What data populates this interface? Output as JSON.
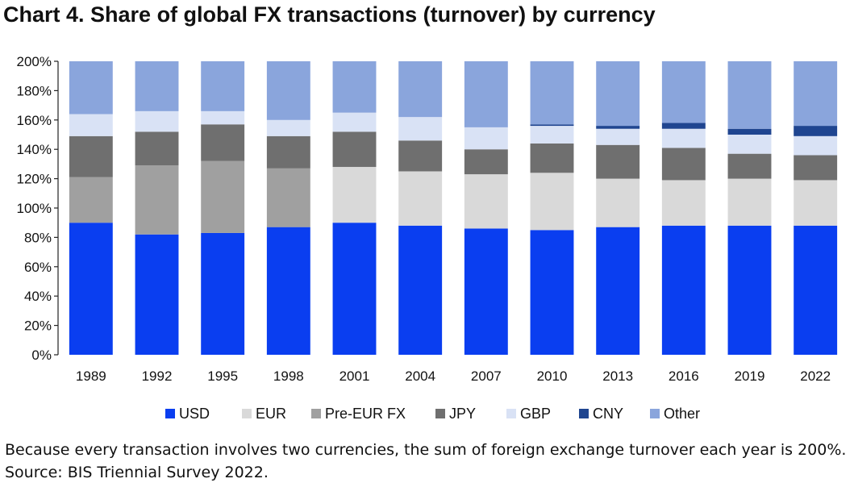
{
  "chart_data": {
    "type": "bar",
    "stacked": true,
    "title": "Chart 4. Share of global FX transactions (turnover) by currency",
    "xlabel": "",
    "ylabel": "",
    "ylim": [
      0,
      200
    ],
    "yticks": [
      "0%",
      "20%",
      "40%",
      "60%",
      "80%",
      "100%",
      "120%",
      "140%",
      "160%",
      "180%",
      "200%"
    ],
    "legend_position": "bottom",
    "categories": [
      "1989",
      "1992",
      "1995",
      "1998",
      "2001",
      "2004",
      "2007",
      "2010",
      "2013",
      "2016",
      "2019",
      "2022"
    ],
    "series": [
      {
        "name": "USD",
        "color": "#0a3ef0",
        "values": [
          90,
          82,
          83,
          87,
          90,
          88,
          86,
          85,
          87,
          88,
          88,
          88
        ]
      },
      {
        "name": "EUR",
        "color": "#d9d9d9",
        "values": [
          0,
          0,
          0,
          0,
          38,
          37,
          37,
          39,
          33,
          31,
          32,
          31
        ]
      },
      {
        "name": "Pre-EUR FX",
        "color": "#a0a0a0",
        "values": [
          31,
          47,
          49,
          40,
          0,
          0,
          0,
          0,
          0,
          0,
          0,
          0
        ]
      },
      {
        "name": "JPY",
        "color": "#6f6f6f",
        "values": [
          28,
          23,
          25,
          22,
          24,
          21,
          17,
          20,
          23,
          22,
          17,
          17
        ]
      },
      {
        "name": "GBP",
        "color": "#d9e2f5",
        "values": [
          15,
          14,
          9,
          11,
          13,
          16,
          15,
          12,
          11,
          13,
          13,
          13
        ]
      },
      {
        "name": "CNY",
        "color": "#1f4590",
        "values": [
          0,
          0,
          0,
          0,
          0,
          0,
          0,
          1,
          2,
          4,
          4,
          7
        ]
      },
      {
        "name": "Other",
        "color": "#8aa5dc",
        "values": [
          36,
          34,
          34,
          40,
          35,
          38,
          45,
          43,
          44,
          42,
          46,
          44
        ]
      }
    ]
  },
  "caption": "Because every transaction involves two currencies, the sum of foreign exchange turnover each year is 200%. Source: BIS Triennial Survey 2022."
}
